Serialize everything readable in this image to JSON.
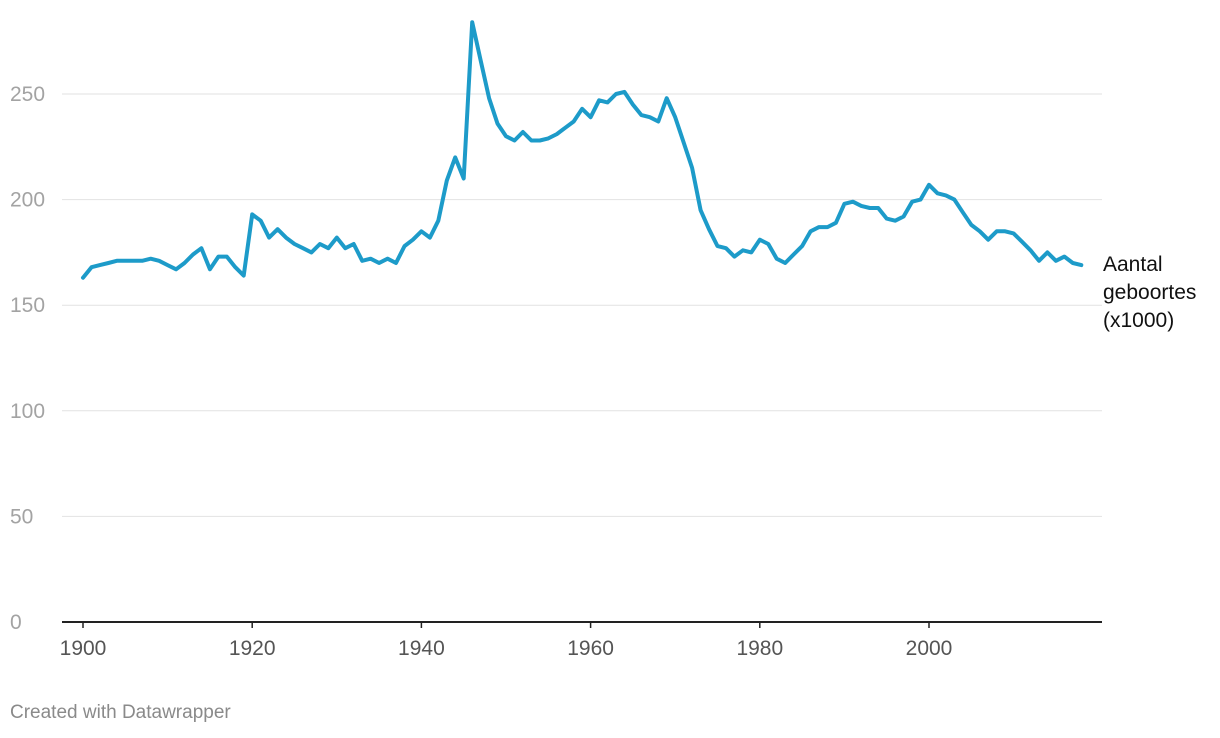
{
  "chart_data": {
    "type": "line",
    "title": "",
    "xlabel": "",
    "ylabel": "",
    "xlim": [
      1900,
      2018
    ],
    "ylim": [
      0,
      280
    ],
    "x_ticks": [
      "1900",
      "1920",
      "1940",
      "1960",
      "1980",
      "2000"
    ],
    "y_ticks": [
      "0",
      "50",
      "100",
      "150",
      "200",
      "250"
    ],
    "grid": true,
    "line_color": "#1d9bc9",
    "series": [
      {
        "name": "Aantal geboortes (x1000)",
        "label_lines": [
          "Aantal",
          "geboortes",
          "(x1000)"
        ],
        "x": [
          1900,
          1901,
          1902,
          1903,
          1904,
          1905,
          1906,
          1907,
          1908,
          1909,
          1910,
          1911,
          1912,
          1913,
          1914,
          1915,
          1916,
          1917,
          1918,
          1919,
          1920,
          1921,
          1922,
          1923,
          1924,
          1925,
          1926,
          1927,
          1928,
          1929,
          1930,
          1931,
          1932,
          1933,
          1934,
          1935,
          1936,
          1937,
          1938,
          1939,
          1940,
          1941,
          1942,
          1943,
          1944,
          1945,
          1946,
          1947,
          1948,
          1949,
          1950,
          1951,
          1952,
          1953,
          1954,
          1955,
          1956,
          1957,
          1958,
          1959,
          1960,
          1961,
          1962,
          1963,
          1964,
          1965,
          1966,
          1967,
          1968,
          1969,
          1970,
          1971,
          1972,
          1973,
          1974,
          1975,
          1976,
          1977,
          1978,
          1979,
          1980,
          1981,
          1982,
          1983,
          1984,
          1985,
          1986,
          1987,
          1988,
          1989,
          1990,
          1991,
          1992,
          1993,
          1994,
          1995,
          1996,
          1997,
          1998,
          1999,
          2000,
          2001,
          2002,
          2003,
          2004,
          2005,
          2006,
          2007,
          2008,
          2009,
          2010,
          2011,
          2012,
          2013,
          2014,
          2015,
          2016,
          2017,
          2018
        ],
        "values": [
          163,
          168,
          169,
          170,
          171,
          171,
          171,
          171,
          172,
          171,
          169,
          167,
          170,
          174,
          177,
          167,
          173,
          173,
          168,
          164,
          193,
          190,
          182,
          186,
          182,
          179,
          177,
          175,
          179,
          177,
          182,
          177,
          179,
          171,
          172,
          170,
          172,
          170,
          178,
          181,
          185,
          182,
          190,
          209,
          220,
          210,
          284,
          266,
          248,
          236,
          230,
          228,
          232,
          228,
          228,
          229,
          231,
          234,
          237,
          243,
          239,
          247,
          246,
          250,
          251,
          245,
          240,
          239,
          237,
          248,
          239,
          227,
          215,
          195,
          186,
          178,
          177,
          173,
          176,
          175,
          181,
          179,
          172,
          170,
          174,
          178,
          185,
          187,
          187,
          189,
          198,
          199,
          197,
          196,
          196,
          191,
          190,
          192,
          199,
          200,
          207,
          203,
          202,
          200,
          194,
          188,
          185,
          181,
          185,
          185,
          184,
          180,
          176,
          171,
          175,
          171,
          173,
          170,
          169
        ]
      }
    ]
  },
  "footer": {
    "credit": "Created with Datawrapper"
  }
}
